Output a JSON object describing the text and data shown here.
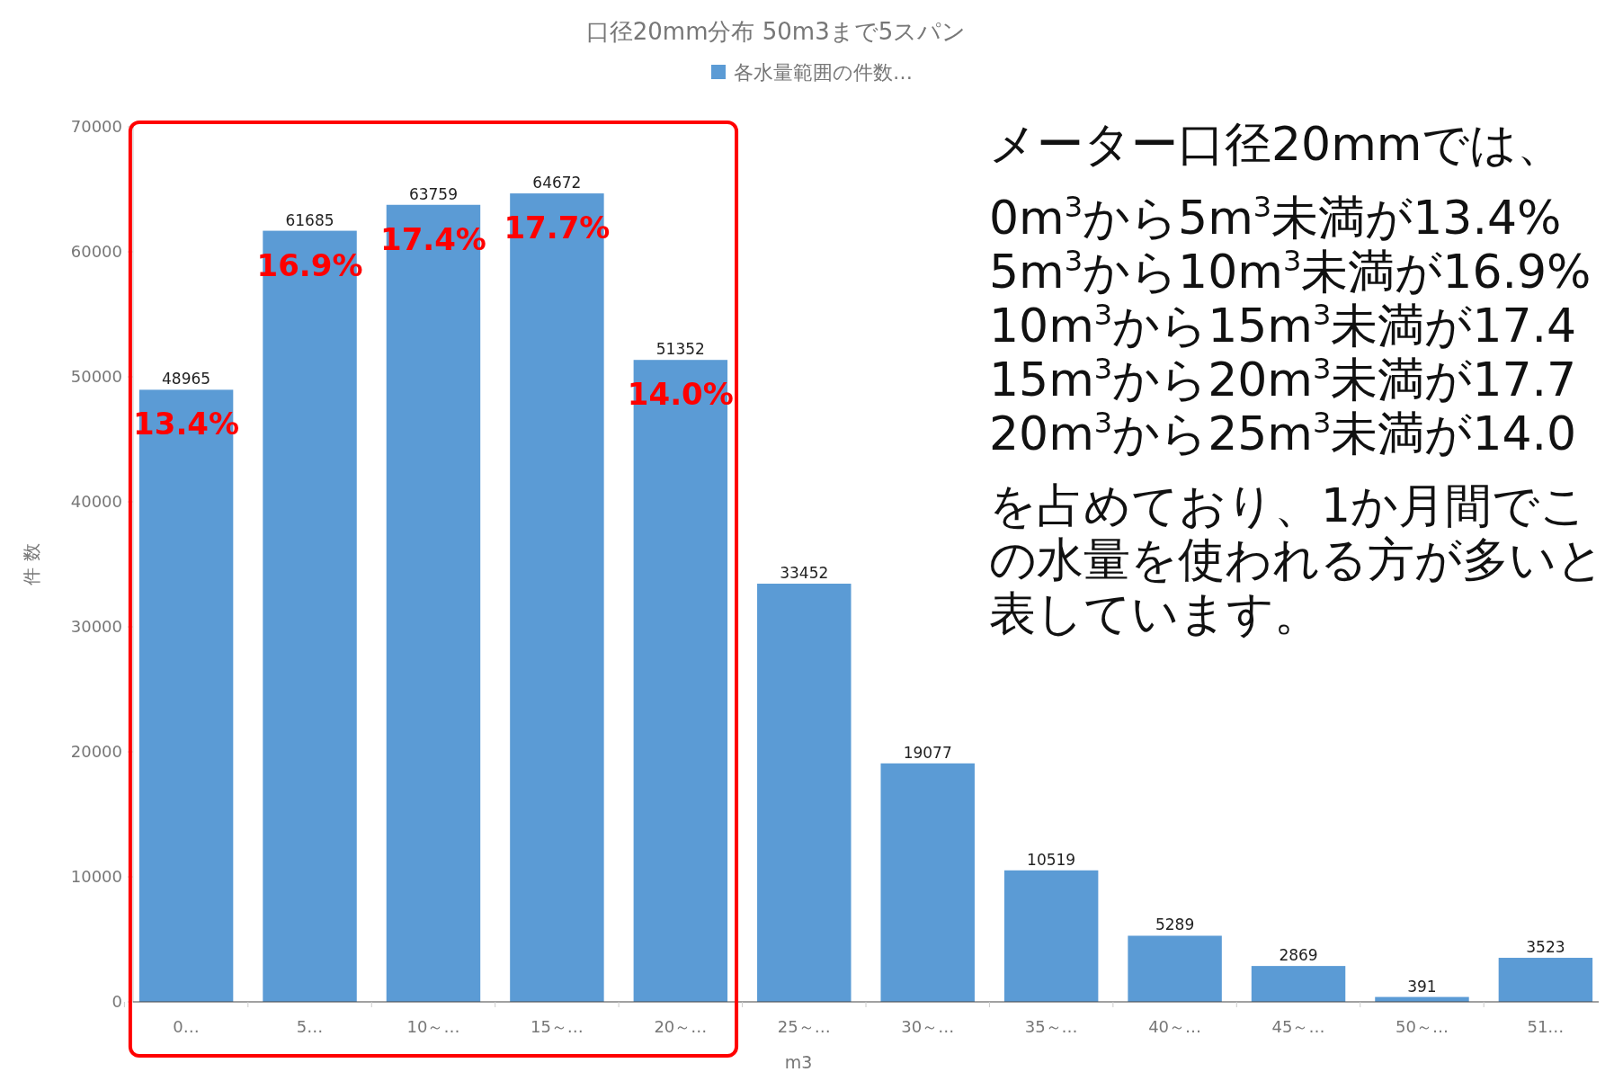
{
  "chart_data": {
    "type": "bar",
    "title": "口径20mm分布 50m3まで5スパン",
    "xlabel": "m3",
    "ylabel": "件 数",
    "categories": [
      "0…",
      "5…",
      "10～…",
      "15～…",
      "20～…",
      "25～…",
      "30～…",
      "35～…",
      "40～…",
      "45～…",
      "50～…",
      "51…"
    ],
    "series": [
      {
        "name": "各水量範囲の件数…",
        "color": "#5b9bd5",
        "values": [
          48965,
          61685,
          63759,
          64672,
          51352,
          33452,
          19077,
          10519,
          5289,
          2869,
          391,
          3523
        ]
      }
    ],
    "data_labels": true,
    "legend": "top",
    "grid": false,
    "ylim": [
      0,
      70000
    ],
    "yticks": [
      0,
      10000,
      20000,
      30000,
      40000,
      50000,
      60000,
      70000
    ],
    "annotations": [
      "13.4%",
      "16.9%",
      "17.4%",
      "17.7%",
      "14.0%",
      "メーター口径20mmでは、",
      "0m$^{3}$から5m$^{3}$未満が13.4%",
      "5m$^{3}$から10m$^{3}$未満が16.9%",
      "10m$^{3}$から15m$^{3}$未満が17.4",
      "15m$^{3}$から20m$^{3}$未満が17.7",
      "20m$^{3}$から25m$^{3}$未満が14.0",
      "を占めており、1か月間でこ",
      "の水量を使われる方が多いと",
      "表しています。"
    ]
  }
}
